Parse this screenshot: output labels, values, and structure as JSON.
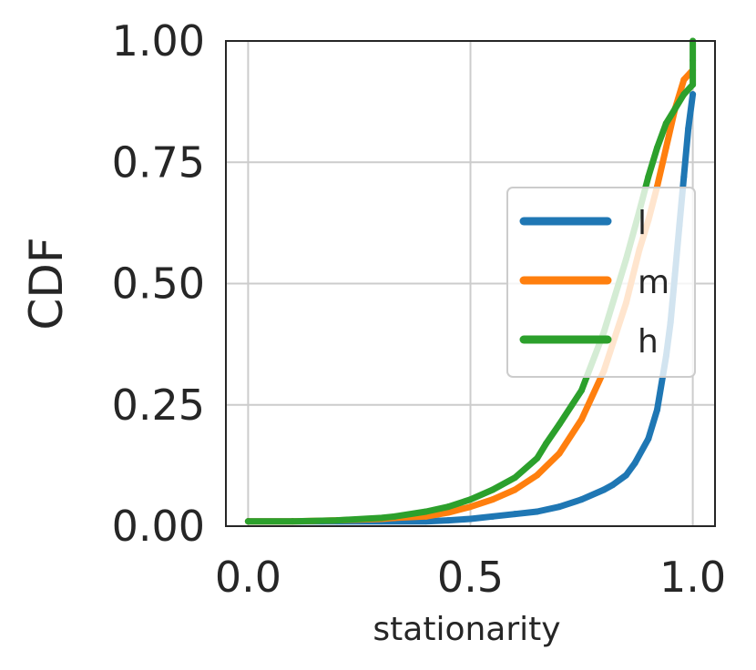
{
  "chart_data": {
    "type": "line",
    "xlabel": "stationarity",
    "ylabel": "CDF",
    "xlim": [
      -0.05,
      1.05
    ],
    "ylim": [
      0.0,
      1.0
    ],
    "xticks": [
      "0.0",
      "0.5",
      "1.0"
    ],
    "xtick_values": [
      0.0,
      0.5,
      1.0
    ],
    "yticks": [
      "0.00",
      "0.25",
      "0.50",
      "0.75",
      "1.00"
    ],
    "ytick_values": [
      0.0,
      0.25,
      0.5,
      0.75,
      1.0
    ],
    "grid": true,
    "legend_position": "right",
    "series": [
      {
        "name": "l",
        "color": "#1f77b4",
        "x": [
          0.0,
          0.1,
          0.2,
          0.3,
          0.4,
          0.45,
          0.5,
          0.55,
          0.6,
          0.65,
          0.7,
          0.75,
          0.8,
          0.82,
          0.85,
          0.87,
          0.9,
          0.92,
          0.94,
          0.95,
          0.96,
          0.97,
          0.98,
          0.99,
          1.0
        ],
        "y": [
          0.01,
          0.01,
          0.01,
          0.01,
          0.01,
          0.012,
          0.015,
          0.02,
          0.025,
          0.03,
          0.04,
          0.055,
          0.075,
          0.085,
          0.105,
          0.13,
          0.18,
          0.24,
          0.35,
          0.42,
          0.52,
          0.62,
          0.72,
          0.82,
          0.89
        ]
      },
      {
        "name": "m",
        "color": "#ff7f0e",
        "x": [
          0.0,
          0.1,
          0.2,
          0.3,
          0.33,
          0.4,
          0.45,
          0.5,
          0.55,
          0.6,
          0.65,
          0.7,
          0.75,
          0.8,
          0.85,
          0.88,
          0.9,
          0.92,
          0.94,
          0.96,
          0.98,
          1.0
        ],
        "y": [
          0.01,
          0.01,
          0.012,
          0.015,
          0.017,
          0.02,
          0.028,
          0.04,
          0.055,
          0.075,
          0.105,
          0.15,
          0.22,
          0.32,
          0.46,
          0.57,
          0.63,
          0.7,
          0.78,
          0.86,
          0.92,
          0.94
        ]
      },
      {
        "name": "h",
        "color": "#2ca02c",
        "x": [
          0.0,
          0.1,
          0.2,
          0.3,
          0.33,
          0.4,
          0.45,
          0.5,
          0.55,
          0.6,
          0.65,
          0.67,
          0.7,
          0.75,
          0.8,
          0.85,
          0.88,
          0.9,
          0.92,
          0.94,
          0.96,
          0.98,
          1.0,
          1.0,
          1.0
        ],
        "y": [
          0.01,
          0.01,
          0.012,
          0.017,
          0.02,
          0.03,
          0.04,
          0.055,
          0.075,
          0.1,
          0.14,
          0.17,
          0.21,
          0.28,
          0.4,
          0.55,
          0.65,
          0.72,
          0.78,
          0.83,
          0.86,
          0.89,
          0.91,
          0.96,
          1.0
        ]
      }
    ]
  }
}
